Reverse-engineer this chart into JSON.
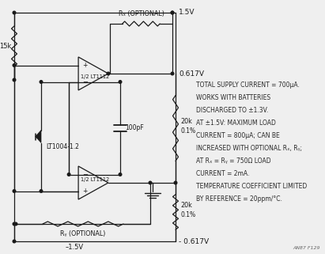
{
  "bg_color": "#efefef",
  "line_color": "#1a1a1a",
  "annotation_lines": [
    "TOTAL SUPPLY CURRENT = 700μA.",
    "WORKS WITH BATTERIES",
    "DISCHARGED TO ±1.3V.",
    "AT ±1.5V: MAXIMUM LOAD",
    "CURRENT = 800μA; CAN BE",
    "INCREASED WITH OPTIONAL Rₓ, Rᵧ;",
    "AT Rₓ = Rᵧ = 750Ω LOAD",
    "CURRENT = 2mA.",
    "TEMPERATURE COEFFICIENT LIMITED",
    "BY REFERENCE = 20ppm/°C."
  ],
  "caption": "AN87 F129",
  "volt_top": "1.5V",
  "volt_mid_pos": "0.617V",
  "volt_mid_neg": "- 0.617V",
  "volt_bot": "–1.5V",
  "r15k": "15k",
  "rx_label": "Rₓ (OPTIONAL)",
  "ry_label": "Rᵧ (OPTIONAL)",
  "op1_label": "1/2 LT1112",
  "op2_label": "1/2 LT1112",
  "ref_label": "LT1004-1.2",
  "cap_label": "100pF",
  "r20k_label": "20k\n0.1%"
}
